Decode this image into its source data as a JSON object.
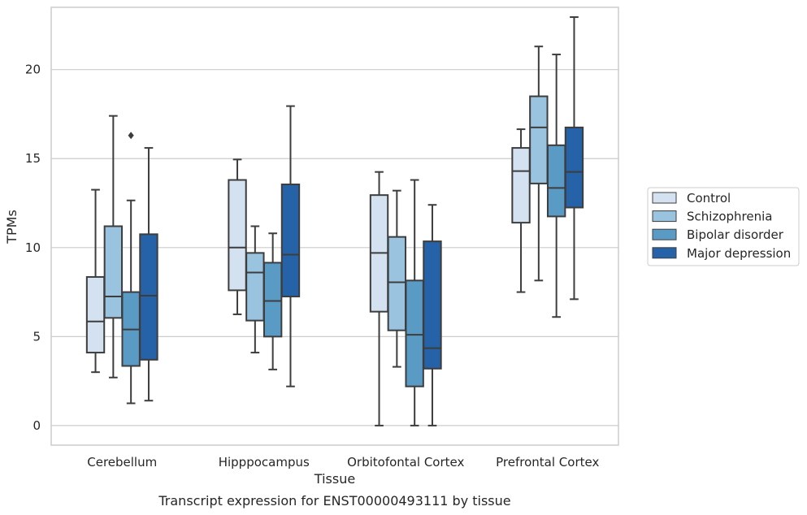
{
  "chart_data": {
    "type": "boxplot",
    "caption": "Transcript expression for ENST00000493111 by tissue",
    "xlabel": "Tissue",
    "ylabel": "TPMs",
    "ylim": [
      -1.1,
      23.5
    ],
    "yticks": [
      0,
      5,
      10,
      15,
      20
    ],
    "grid": "horizontal",
    "legend_position": "right",
    "categories": [
      "Cerebellum",
      "Hipppocampus",
      "Orbitofontal Cortex",
      "Prefrontal Cortex"
    ],
    "series": [
      {
        "name": "Control",
        "color": "#d3e1f0",
        "boxes": [
          {
            "whisker_low": 3.0,
            "q1": 4.1,
            "median": 5.85,
            "q3": 8.35,
            "whisker_high": 13.25,
            "outliers": []
          },
          {
            "whisker_low": 6.25,
            "q1": 7.6,
            "median": 10.0,
            "q3": 13.8,
            "whisker_high": 14.95,
            "outliers": []
          },
          {
            "whisker_low": 0.0,
            "q1": 6.4,
            "median": 9.7,
            "q3": 12.95,
            "whisker_high": 14.25,
            "outliers": []
          },
          {
            "whisker_low": 7.5,
            "q1": 11.4,
            "median": 14.3,
            "q3": 15.6,
            "whisker_high": 16.65,
            "outliers": []
          }
        ]
      },
      {
        "name": "Schizophrenia",
        "color": "#99c3de",
        "boxes": [
          {
            "whisker_low": 2.7,
            "q1": 6.05,
            "median": 7.25,
            "q3": 11.2,
            "whisker_high": 17.4,
            "outliers": []
          },
          {
            "whisker_low": 4.1,
            "q1": 5.9,
            "median": 8.6,
            "q3": 9.7,
            "whisker_high": 11.2,
            "outliers": []
          },
          {
            "whisker_low": 3.3,
            "q1": 5.35,
            "median": 8.05,
            "q3": 10.6,
            "whisker_high": 13.2,
            "outliers": []
          },
          {
            "whisker_low": 8.15,
            "q1": 13.6,
            "median": 16.75,
            "q3": 18.5,
            "whisker_high": 21.3,
            "outliers": []
          }
        ]
      },
      {
        "name": "Bipolar disorder",
        "color": "#5a9bc6",
        "boxes": [
          {
            "whisker_low": 1.25,
            "q1": 3.35,
            "median": 5.4,
            "q3": 7.5,
            "whisker_high": 12.65,
            "outliers": [
              16.3
            ]
          },
          {
            "whisker_low": 3.15,
            "q1": 5.0,
            "median": 7.0,
            "q3": 9.15,
            "whisker_high": 10.8,
            "outliers": []
          },
          {
            "whisker_low": 0.0,
            "q1": 2.2,
            "median": 5.1,
            "q3": 8.15,
            "whisker_high": 13.8,
            "outliers": []
          },
          {
            "whisker_low": 6.1,
            "q1": 11.75,
            "median": 13.35,
            "q3": 15.75,
            "whisker_high": 20.85,
            "outliers": []
          }
        ]
      },
      {
        "name": "Major depression",
        "color": "#2562a8",
        "boxes": [
          {
            "whisker_low": 1.4,
            "q1": 3.7,
            "median": 7.3,
            "q3": 10.75,
            "whisker_high": 15.6,
            "outliers": []
          },
          {
            "whisker_low": 2.2,
            "q1": 7.25,
            "median": 9.6,
            "q3": 13.55,
            "whisker_high": 17.95,
            "outliers": []
          },
          {
            "whisker_low": 0.0,
            "q1": 3.2,
            "median": 4.35,
            "q3": 10.35,
            "whisker_high": 12.4,
            "outliers": []
          },
          {
            "whisker_low": 7.1,
            "q1": 12.25,
            "median": 14.25,
            "q3": 16.75,
            "whisker_high": 22.95,
            "outliers": []
          }
        ]
      }
    ]
  }
}
